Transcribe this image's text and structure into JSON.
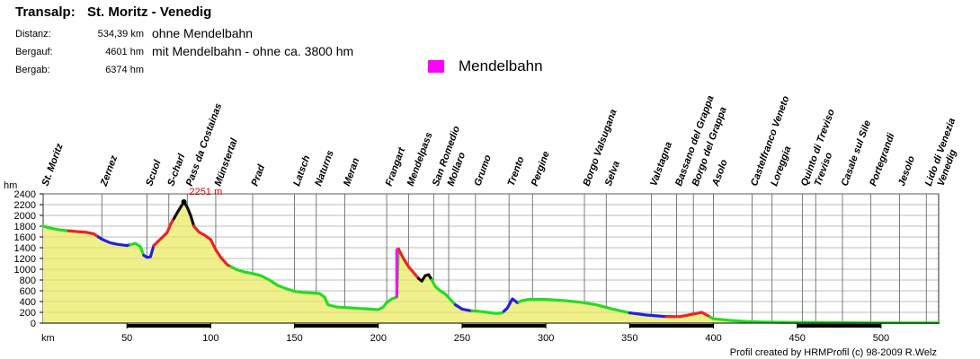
{
  "header": {
    "route_label": "Transalp:",
    "route_name": "St. Moritz - Venedig",
    "stats": [
      {
        "label": "Distanz:",
        "value": "534,39 km",
        "note": "ohne Mendelbahn"
      },
      {
        "label": "Bergauf:",
        "value": "4601 hm",
        "note": "mit Mendelbahn - ohne ca. 3800 hm"
      },
      {
        "label": "Bergab:",
        "value": "6374 hm",
        "note": ""
      }
    ]
  },
  "legend": {
    "label": "Mendelbahn",
    "color": "#ff00ff"
  },
  "credit": "Profil created by HRMProfil (c) 98-2009 R.Welz",
  "chart_data": {
    "type": "area",
    "title": "Transalp: St. Moritz - Venedig",
    "xlabel": "km",
    "ylabel": "hm",
    "xlim": [
      0,
      534.39
    ],
    "ylim": [
      0,
      2400
    ],
    "x_ticks": [
      50,
      100,
      150,
      200,
      250,
      300,
      350,
      400,
      450,
      500
    ],
    "x_tick_labels": [
      "50",
      "100",
      "150",
      "200",
      "250",
      "300",
      "350",
      "400",
      "450",
      "500"
    ],
    "y_ticks": [
      0,
      200,
      400,
      600,
      800,
      1000,
      1200,
      1400,
      1600,
      1800,
      2000,
      2200,
      2400
    ],
    "y_tick_labels": [
      "0",
      "200",
      "400",
      "600",
      "800",
      "1000",
      "1200",
      "1400",
      "1600",
      "1800",
      "2000",
      "2200",
      "2400"
    ],
    "max_annotation": {
      "x": 84,
      "y": 2251,
      "label": "2251 m"
    },
    "fill_color": "#f0f08a",
    "line_colors": {
      "flat": "#22dd22",
      "up": "#ee2222",
      "steep": "#111111",
      "down": "#2222dd",
      "mendelbahn": "#ff00ff"
    },
    "profile": [
      [
        0,
        1800
      ],
      [
        5,
        1760
      ],
      [
        10,
        1730
      ],
      [
        15,
        1715
      ],
      [
        20,
        1700
      ],
      [
        25,
        1690
      ],
      [
        30,
        1660
      ],
      [
        35,
        1560
      ],
      [
        40,
        1490
      ],
      [
        45,
        1460
      ],
      [
        50,
        1440
      ],
      [
        55,
        1480
      ],
      [
        58,
        1420
      ],
      [
        60,
        1260
      ],
      [
        62,
        1220
      ],
      [
        64,
        1230
      ],
      [
        66,
        1440
      ],
      [
        70,
        1560
      ],
      [
        74,
        1680
      ],
      [
        76,
        1830
      ],
      [
        80,
        2050
      ],
      [
        84,
        2251
      ],
      [
        86,
        2150
      ],
      [
        88,
        2000
      ],
      [
        90,
        1800
      ],
      [
        93,
        1690
      ],
      [
        96,
        1640
      ],
      [
        100,
        1550
      ],
      [
        103,
        1360
      ],
      [
        106,
        1220
      ],
      [
        110,
        1080
      ],
      [
        115,
        1000
      ],
      [
        120,
        950
      ],
      [
        125,
        920
      ],
      [
        130,
        880
      ],
      [
        135,
        800
      ],
      [
        140,
        700
      ],
      [
        145,
        640
      ],
      [
        150,
        590
      ],
      [
        155,
        570
      ],
      [
        160,
        560
      ],
      [
        165,
        550
      ],
      [
        168,
        480
      ],
      [
        170,
        340
      ],
      [
        175,
        300
      ],
      [
        180,
        290
      ],
      [
        185,
        280
      ],
      [
        190,
        270
      ],
      [
        195,
        260
      ],
      [
        200,
        250
      ],
      [
        203,
        300
      ],
      [
        205,
        380
      ],
      [
        208,
        450
      ],
      [
        211,
        480
      ],
      [
        212,
        1380
      ],
      [
        215,
        1200
      ],
      [
        218,
        1050
      ],
      [
        221,
        940
      ],
      [
        224,
        830
      ],
      [
        226,
        780
      ],
      [
        228,
        880
      ],
      [
        230,
        900
      ],
      [
        232,
        800
      ],
      [
        234,
        680
      ],
      [
        237,
        600
      ],
      [
        240,
        540
      ],
      [
        243,
        440
      ],
      [
        246,
        340
      ],
      [
        250,
        260
      ],
      [
        255,
        230
      ],
      [
        260,
        220
      ],
      [
        265,
        200
      ],
      [
        270,
        180
      ],
      [
        274,
        190
      ],
      [
        277,
        280
      ],
      [
        280,
        450
      ],
      [
        283,
        380
      ],
      [
        286,
        420
      ],
      [
        290,
        440
      ],
      [
        300,
        440
      ],
      [
        310,
        420
      ],
      [
        320,
        390
      ],
      [
        330,
        340
      ],
      [
        340,
        260
      ],
      [
        350,
        190
      ],
      [
        360,
        150
      ],
      [
        370,
        125
      ],
      [
        380,
        120
      ],
      [
        385,
        150
      ],
      [
        390,
        180
      ],
      [
        393,
        200
      ],
      [
        396,
        150
      ],
      [
        400,
        80
      ],
      [
        410,
        50
      ],
      [
        420,
        30
      ],
      [
        430,
        20
      ],
      [
        440,
        15
      ],
      [
        450,
        12
      ],
      [
        460,
        10
      ],
      [
        470,
        8
      ],
      [
        480,
        6
      ],
      [
        490,
        5
      ],
      [
        500,
        4
      ],
      [
        510,
        3
      ],
      [
        520,
        2
      ],
      [
        530,
        2
      ],
      [
        534.39,
        2
      ]
    ],
    "segments": [
      {
        "from": 0,
        "to": 15,
        "kind": "flat"
      },
      {
        "from": 15,
        "to": 33,
        "kind": "up"
      },
      {
        "from": 33,
        "to": 52,
        "kind": "down"
      },
      {
        "from": 52,
        "to": 60,
        "kind": "flat"
      },
      {
        "from": 60,
        "to": 66,
        "kind": "down"
      },
      {
        "from": 66,
        "to": 78,
        "kind": "up"
      },
      {
        "from": 78,
        "to": 90,
        "kind": "steep"
      },
      {
        "from": 90,
        "to": 100,
        "kind": "up"
      },
      {
        "from": 100,
        "to": 112,
        "kind": "up"
      },
      {
        "from": 112,
        "to": 150,
        "kind": "flat"
      },
      {
        "from": 150,
        "to": 212,
        "kind": "flat"
      },
      {
        "from": 212,
        "to": 224,
        "kind": "up"
      },
      {
        "from": 224,
        "to": 232,
        "kind": "steep"
      },
      {
        "from": 232,
        "to": 246,
        "kind": "flat"
      },
      {
        "from": 246,
        "to": 256,
        "kind": "down"
      },
      {
        "from": 256,
        "to": 275,
        "kind": "flat"
      },
      {
        "from": 275,
        "to": 284,
        "kind": "down"
      },
      {
        "from": 284,
        "to": 350,
        "kind": "flat"
      },
      {
        "from": 350,
        "to": 372,
        "kind": "down"
      },
      {
        "from": 372,
        "to": 398,
        "kind": "up"
      },
      {
        "from": 398,
        "to": 415,
        "kind": "flat"
      },
      {
        "from": 415,
        "to": 534.39,
        "kind": "flat"
      }
    ],
    "mendelbahn": {
      "x": 211,
      "from": 480,
      "to": 1380
    },
    "places": [
      {
        "name": "St. Moritz",
        "x": 0
      },
      {
        "name": "Zernez",
        "x": 35
      },
      {
        "name": "Scuol",
        "x": 62
      },
      {
        "name": "S-charl",
        "x": 75
      },
      {
        "name": "Pass da Costainas",
        "x": 86
      },
      {
        "name": "Münstertal",
        "x": 103
      },
      {
        "name": "Prad",
        "x": 125
      },
      {
        "name": "Latsch",
        "x": 150
      },
      {
        "name": "Naturns",
        "x": 163
      },
      {
        "name": "Meran",
        "x": 180
      },
      {
        "name": "Frangart",
        "x": 205
      },
      {
        "name": "Mendelpass",
        "x": 218
      },
      {
        "name": "San Romedio",
        "x": 233
      },
      {
        "name": "Mollaro",
        "x": 242
      },
      {
        "name": "Grumo",
        "x": 258
      },
      {
        "name": "Trento",
        "x": 278
      },
      {
        "name": "Pergine",
        "x": 292
      },
      {
        "name": "Borgo Valsugana",
        "x": 323
      },
      {
        "name": "Selva",
        "x": 336
      },
      {
        "name": "Valstagna",
        "x": 363
      },
      {
        "name": "Bassano del Grappa",
        "x": 378
      },
      {
        "name": "Borgo del Grappa",
        "x": 388
      },
      {
        "name": "Asolo",
        "x": 400
      },
      {
        "name": "Castelfranco Veneto",
        "x": 423
      },
      {
        "name": "Loreggia",
        "x": 435
      },
      {
        "name": "Quinto di Treviso",
        "x": 453
      },
      {
        "name": "Treviso",
        "x": 461
      },
      {
        "name": "Casale sul Sile",
        "x": 477
      },
      {
        "name": "Portegrandi",
        "x": 494
      },
      {
        "name": "Jesolo",
        "x": 511
      },
      {
        "name": "Lido di Venezia",
        "x": 527
      },
      {
        "name": "Venedig",
        "x": 534.39
      }
    ]
  }
}
